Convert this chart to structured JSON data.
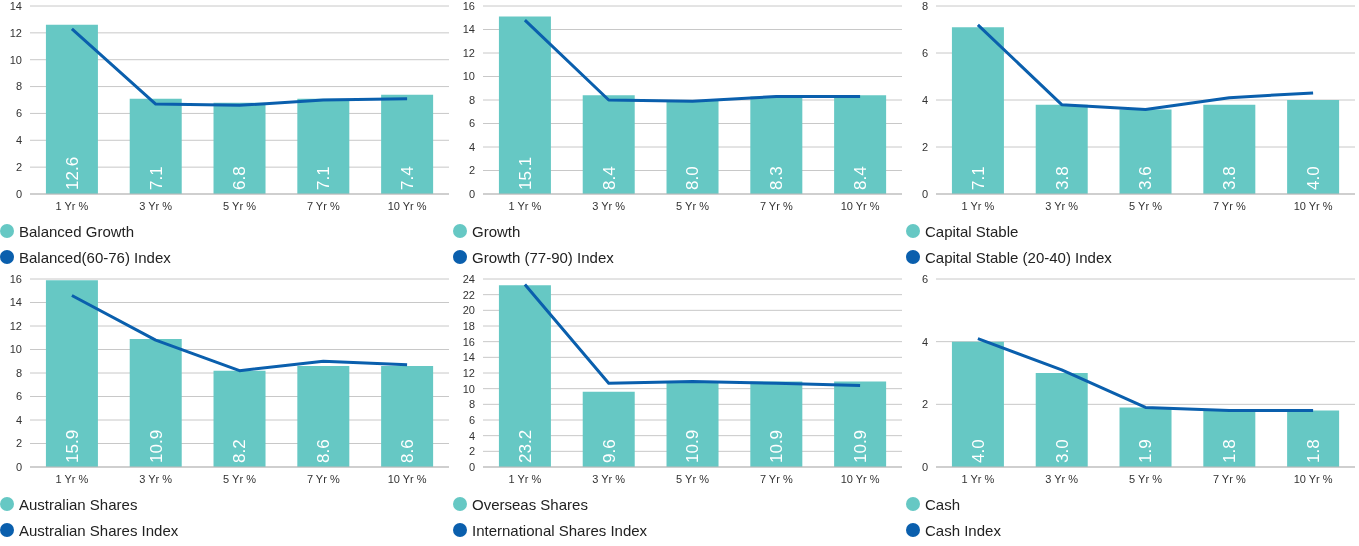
{
  "chart_data": [
    {
      "type": "bar",
      "categories": [
        "1 Yr %",
        "3 Yr %",
        "5 Yr %",
        "7 Yr %",
        "10 Yr %"
      ],
      "ylim": [
        0,
        14
      ],
      "yticks": [
        0,
        2,
        4,
        6,
        8,
        10,
        12,
        14
      ],
      "grid": "y",
      "legend": "bottom",
      "series": [
        {
          "name": "Balanced Growth",
          "color": "#66c8c4",
          "values": [
            12.6,
            7.1,
            6.8,
            7.1,
            7.4
          ],
          "value_labels": [
            "12.6",
            "7.1",
            "6.8",
            "7.1",
            "7.4"
          ]
        },
        {
          "name": "Balanced(60-76) Index",
          "type": "line",
          "color": "#0a5fad",
          "values": [
            12.3,
            6.7,
            6.6,
            7.0,
            7.1
          ]
        }
      ]
    },
    {
      "type": "bar",
      "categories": [
        "1 Yr %",
        "3 Yr %",
        "5 Yr %",
        "7 Yr %",
        "10 Yr %"
      ],
      "ylim": [
        0,
        16
      ],
      "yticks": [
        0,
        2,
        4,
        6,
        8,
        10,
        12,
        14,
        16
      ],
      "grid": "y",
      "legend": "bottom",
      "series": [
        {
          "name": "Growth",
          "color": "#66c8c4",
          "values": [
            15.1,
            8.4,
            8.0,
            8.3,
            8.4
          ],
          "value_labels": [
            "15.1",
            "8.4",
            "8.0",
            "8.3",
            "8.4"
          ]
        },
        {
          "name": "Growth (77-90) Index",
          "type": "line",
          "color": "#0a5fad",
          "values": [
            14.8,
            8.0,
            7.9,
            8.3,
            8.3
          ]
        }
      ]
    },
    {
      "type": "bar",
      "categories": [
        "1 Yr %",
        "3 Yr %",
        "5 Yr %",
        "7 Yr %",
        "10 Yr %"
      ],
      "ylim": [
        0,
        8
      ],
      "yticks": [
        0,
        2,
        4,
        6,
        8
      ],
      "grid": "y",
      "legend": "bottom",
      "series": [
        {
          "name": "Capital Stable",
          "color": "#66c8c4",
          "values": [
            7.1,
            3.8,
            3.6,
            3.8,
            4.0
          ],
          "value_labels": [
            "7.1",
            "3.8",
            "3.6",
            "3.8",
            "4.0"
          ]
        },
        {
          "name": "Capital Stable (20-40) Index",
          "type": "line",
          "color": "#0a5fad",
          "values": [
            7.2,
            3.8,
            3.6,
            4.1,
            4.3
          ]
        }
      ]
    },
    {
      "type": "bar",
      "categories": [
        "1 Yr %",
        "3 Yr %",
        "5 Yr %",
        "7 Yr %",
        "10 Yr %"
      ],
      "ylim": [
        0,
        16
      ],
      "yticks": [
        0,
        2,
        4,
        6,
        8,
        10,
        12,
        14,
        16
      ],
      "grid": "y",
      "legend": "bottom",
      "series": [
        {
          "name": "Australian Shares",
          "color": "#66c8c4",
          "values": [
            15.9,
            10.9,
            8.2,
            8.6,
            8.6
          ],
          "value_labels": [
            "15.9",
            "10.9",
            "8.2",
            "8.6",
            "8.6"
          ]
        },
        {
          "name": "Australian Shares Index",
          "type": "line",
          "color": "#0a5fad",
          "values": [
            14.6,
            10.8,
            8.2,
            9.0,
            8.7
          ]
        }
      ]
    },
    {
      "type": "bar",
      "categories": [
        "1 Yr %",
        "3 Yr %",
        "5 Yr %",
        "7 Yr %",
        "10 Yr %"
      ],
      "ylim": [
        0,
        24
      ],
      "yticks": [
        0,
        2,
        4,
        6,
        8,
        10,
        12,
        14,
        16,
        18,
        20,
        22,
        24
      ],
      "grid": "y",
      "legend": "bottom",
      "series": [
        {
          "name": "Overseas Shares",
          "color": "#66c8c4",
          "values": [
            23.2,
            9.6,
            10.9,
            10.9,
            10.9
          ],
          "value_labels": [
            "23.2",
            "9.6",
            "10.9",
            "10.9",
            "10.9"
          ]
        },
        {
          "name": "International Shares Index",
          "type": "line",
          "color": "#0a5fad",
          "values": [
            23.3,
            10.7,
            10.9,
            10.7,
            10.4
          ]
        }
      ]
    },
    {
      "type": "bar",
      "categories": [
        "1 Yr %",
        "3 Yr %",
        "5 Yr %",
        "7 Yr %",
        "10 Yr %"
      ],
      "ylim": [
        0,
        6
      ],
      "yticks": [
        0,
        2,
        4,
        6
      ],
      "grid": "y",
      "legend": "bottom",
      "series": [
        {
          "name": "Cash",
          "color": "#66c8c4",
          "values": [
            4.0,
            3.0,
            1.9,
            1.8,
            1.8
          ],
          "value_labels": [
            "4.0",
            "3.0",
            "1.9",
            "1.8",
            "1.8"
          ]
        },
        {
          "name": "Cash Index",
          "type": "line",
          "color": "#0a5fad",
          "values": [
            4.1,
            3.1,
            1.9,
            1.8,
            1.8
          ]
        }
      ]
    }
  ]
}
